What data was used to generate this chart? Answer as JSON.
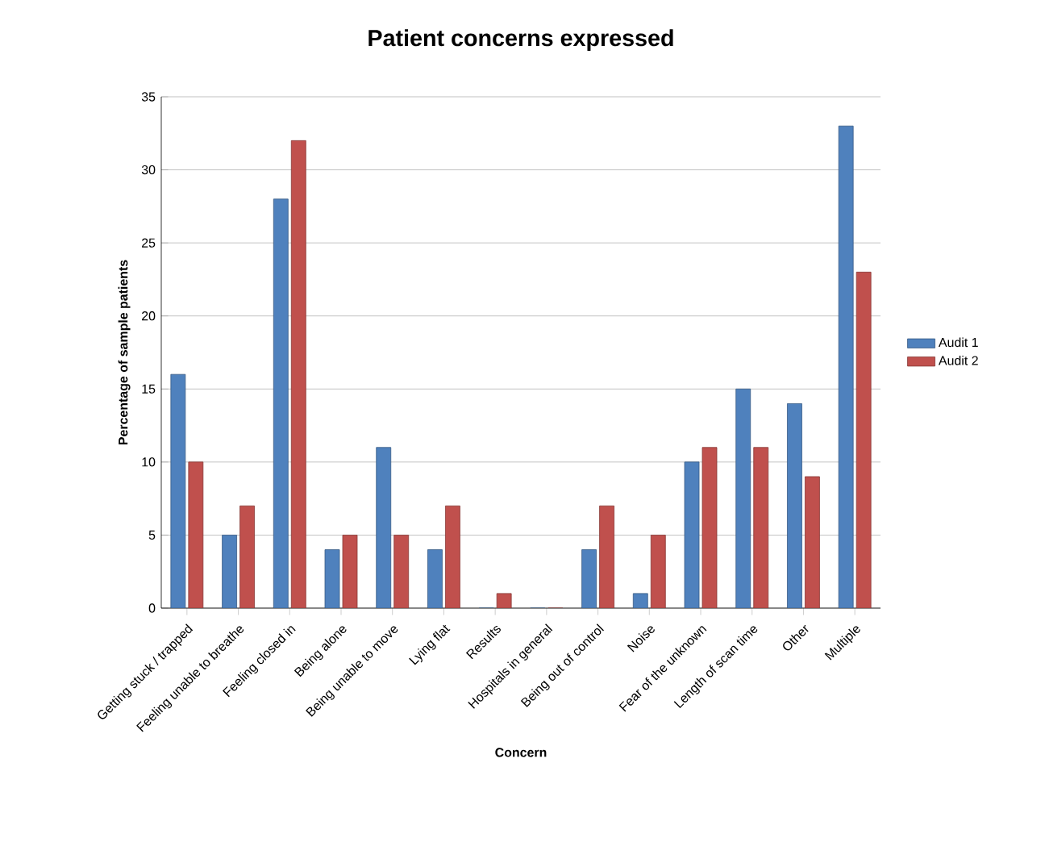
{
  "chart_data": {
    "type": "bar",
    "title": "Patient concerns expressed",
    "xlabel": "Concern",
    "ylabel": "Percentage of sample patients",
    "categories": [
      "Getting stuck / trapped",
      "Feeling unable to breathe",
      "Feeling closed in",
      "Being alone",
      "Being unable to move",
      "Lying flat",
      "Results",
      "Hospitals in general",
      "Being out of control",
      "Noise",
      "Fear of the unknown",
      "Length of scan time",
      "Other",
      "Multiple"
    ],
    "series": [
      {
        "name": "Audit 1",
        "color": "#4f81bd",
        "values": [
          16,
          5,
          28,
          4,
          11,
          4,
          0,
          0,
          4,
          1,
          10,
          15,
          14,
          33
        ]
      },
      {
        "name": "Audit 2",
        "color": "#c0504d",
        "values": [
          10,
          7,
          32,
          5,
          5,
          7,
          1,
          0,
          7,
          5,
          11,
          11,
          9,
          23
        ]
      }
    ],
    "ylim": [
      0,
      35
    ],
    "yticks": [
      0,
      5,
      10,
      15,
      20,
      25,
      30,
      35
    ],
    "grid": "y",
    "legend": "right"
  }
}
